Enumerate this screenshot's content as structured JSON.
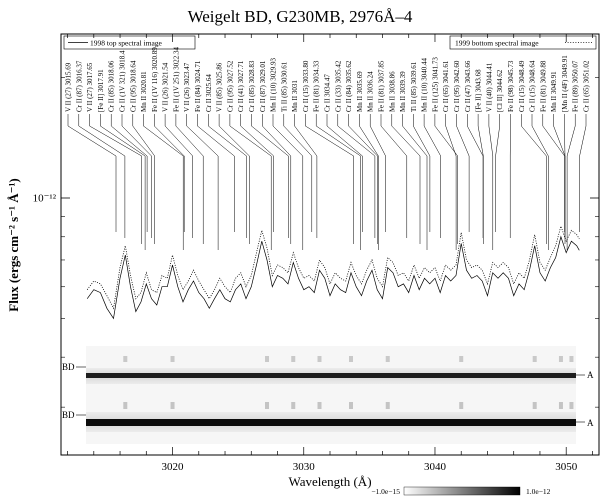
{
  "chart_data": {
    "type": "line",
    "title": "Weigelt BD, G230MB, 2976Å–4",
    "xlabel": "Wavelength (Å)",
    "ylabel": "Flux (ergs cm⁻² s⁻¹ Å⁻¹)",
    "xlim": [
      3011.5,
      3052.5
    ],
    "y_scale": "log",
    "x_ticks": [
      3020,
      3030,
      3040,
      3050
    ],
    "x_tick_labels": [
      "3020",
      "3030",
      "3040",
      "3050"
    ],
    "y_tick_label": "10⁻¹²",
    "legend": {
      "left": {
        "label": "1998 top spectral image",
        "style": "solid"
      },
      "right": {
        "label": "1999 bottom spectral image",
        "style": "dotted"
      }
    },
    "series": [
      {
        "name": "1998 top spectral image",
        "style": "solid",
        "x": [
          3013.5,
          3014.0,
          3014.5,
          3015.0,
          3015.5,
          3016.0,
          3016.4,
          3016.8,
          3017.2,
          3017.6,
          3018.0,
          3018.4,
          3018.8,
          3019.2,
          3019.6,
          3020.0,
          3020.4,
          3020.8,
          3021.2,
          3021.6,
          3022.0,
          3022.4,
          3022.8,
          3023.2,
          3023.6,
          3024.0,
          3024.4,
          3024.8,
          3025.2,
          3025.6,
          3026.0,
          3026.4,
          3026.8,
          3027.2,
          3027.6,
          3028.0,
          3028.4,
          3028.8,
          3029.2,
          3029.6,
          3030.0,
          3030.4,
          3030.8,
          3031.2,
          3031.6,
          3032.0,
          3032.4,
          3032.8,
          3033.2,
          3033.6,
          3034.0,
          3034.4,
          3034.8,
          3035.2,
          3035.6,
          3036.0,
          3036.4,
          3036.8,
          3037.2,
          3037.6,
          3038.0,
          3038.4,
          3038.8,
          3039.2,
          3039.6,
          3040.0,
          3040.4,
          3040.8,
          3041.2,
          3041.6,
          3042.0,
          3042.4,
          3042.8,
          3043.2,
          3043.6,
          3044.0,
          3044.4,
          3044.8,
          3045.2,
          3045.6,
          3046.0,
          3046.4,
          3046.8,
          3047.2,
          3047.6,
          3048.0,
          3048.4,
          3048.8,
          3049.2,
          3049.6,
          3050.0,
          3050.4,
          3050.8,
          3051.0
        ],
        "y": [
          5.6e-13,
          5.9e-13,
          5.8e-13,
          5.3e-13,
          5e-13,
          6.3e-13,
          7.2e-13,
          6e-13,
          5.2e-13,
          5.5e-13,
          6.1e-13,
          5.6e-13,
          5.4e-13,
          6e-13,
          6e-13,
          6.8e-13,
          6e-13,
          5.5e-13,
          5.9e-13,
          6.2e-13,
          5.8e-13,
          5.6e-13,
          5.3e-13,
          5.6e-13,
          5.9e-13,
          5.6e-13,
          5.5e-13,
          5.9e-13,
          6.1e-13,
          5.6e-13,
          6e-13,
          6.8e-13,
          7.8e-13,
          7e-13,
          6e-13,
          6.4e-13,
          6.3e-13,
          6.1e-13,
          6.9e-13,
          6.3e-13,
          5.9e-13,
          6e-13,
          5.8e-13,
          6.6e-13,
          6.3e-13,
          5.7e-13,
          6.1e-13,
          5.9e-13,
          5.8e-13,
          6.5e-13,
          6e-13,
          5.7e-13,
          6.2e-13,
          6.6e-13,
          5.9e-13,
          5.6e-13,
          6.7e-13,
          6.5e-13,
          6e-13,
          6.1e-13,
          5.8e-13,
          6.4e-13,
          5.9e-13,
          6.3e-13,
          6.1e-13,
          6.3e-13,
          5.8e-13,
          6.4e-13,
          6.2e-13,
          6.4e-13,
          7.7e-13,
          6.6e-13,
          6.3e-13,
          6.4e-13,
          6.2e-13,
          5.7e-13,
          6.5e-13,
          6.3e-13,
          6.5e-13,
          6.3e-13,
          5.7e-13,
          6.1e-13,
          5.9e-13,
          6.6e-13,
          7.6e-13,
          6.5e-13,
          6.2e-13,
          6.7e-13,
          7.1e-13,
          8e-13,
          7.3e-13,
          7.8e-13,
          7.6e-13,
          7.4e-13
        ]
      },
      {
        "name": "1999 bottom spectral image",
        "style": "dotted",
        "x": [
          3013.5,
          3014.0,
          3014.5,
          3015.0,
          3015.5,
          3016.0,
          3016.4,
          3016.8,
          3017.2,
          3017.6,
          3018.0,
          3018.4,
          3018.8,
          3019.2,
          3019.6,
          3020.0,
          3020.4,
          3020.8,
          3021.2,
          3021.6,
          3022.0,
          3022.4,
          3022.8,
          3023.2,
          3023.6,
          3024.0,
          3024.4,
          3024.8,
          3025.2,
          3025.6,
          3026.0,
          3026.4,
          3026.8,
          3027.2,
          3027.6,
          3028.0,
          3028.4,
          3028.8,
          3029.2,
          3029.6,
          3030.0,
          3030.4,
          3030.8,
          3031.2,
          3031.6,
          3032.0,
          3032.4,
          3032.8,
          3033.2,
          3033.6,
          3034.0,
          3034.4,
          3034.8,
          3035.2,
          3035.6,
          3036.0,
          3036.4,
          3036.8,
          3037.2,
          3037.6,
          3038.0,
          3038.4,
          3038.8,
          3039.2,
          3039.6,
          3040.0,
          3040.4,
          3040.8,
          3041.2,
          3041.6,
          3042.0,
          3042.4,
          3042.8,
          3043.2,
          3043.6,
          3044.0,
          3044.4,
          3044.8,
          3045.2,
          3045.6,
          3046.0,
          3046.4,
          3046.8,
          3047.2,
          3047.6,
          3048.0,
          3048.4,
          3048.8,
          3049.2,
          3049.6,
          3050.0,
          3050.4,
          3050.8,
          3051.0
        ],
        "y": [
          5.9e-13,
          6.2e-13,
          6.1e-13,
          5.7e-13,
          5.3e-13,
          6.7e-13,
          7.6e-13,
          6.4e-13,
          5.6e-13,
          5.8e-13,
          6.5e-13,
          5.9e-13,
          5.8e-13,
          6.4e-13,
          6.3e-13,
          7.2e-13,
          6.4e-13,
          5.9e-13,
          6.2e-13,
          6.6e-13,
          6.2e-13,
          5.9e-13,
          5.6e-13,
          5.9e-13,
          6.3e-13,
          6e-13,
          5.8e-13,
          6.3e-13,
          6.5e-13,
          6e-13,
          6.4e-13,
          7.3e-13,
          8.3e-13,
          7.5e-13,
          6.4e-13,
          6.8e-13,
          6.7e-13,
          6.5e-13,
          7.3e-13,
          6.7e-13,
          6.3e-13,
          6.4e-13,
          6.2e-13,
          7e-13,
          6.7e-13,
          6.1e-13,
          6.5e-13,
          6.3e-13,
          6.2e-13,
          6.9e-13,
          6.4e-13,
          6.1e-13,
          6.6e-13,
          7e-13,
          6.3e-13,
          6e-13,
          7.1e-13,
          6.9e-13,
          6.4e-13,
          6.5e-13,
          6.2e-13,
          6.8e-13,
          6.3e-13,
          6.7e-13,
          6.5e-13,
          6.7e-13,
          6.2e-13,
          6.8e-13,
          6.6e-13,
          6.8e-13,
          8.2e-13,
          7e-13,
          6.7e-13,
          6.8e-13,
          6.6e-13,
          6.1e-13,
          6.9e-13,
          6.7e-13,
          6.9e-13,
          6.7e-13,
          6.1e-13,
          6.5e-13,
          6.3e-13,
          7e-13,
          8.1e-13,
          6.9e-13,
          6.6e-13,
          7.1e-13,
          7.6e-13,
          8.5e-13,
          7.8e-13,
          8.3e-13,
          8.1e-13,
          7.9e-13
        ]
      }
    ],
    "line_identifications": [
      {
        "label": "V II (27) 3015.69",
        "x": 3015.69
      },
      {
        "label": "Cr II (87) 3016.37",
        "x": 3016.37
      },
      {
        "label": "V II (27) 3017.65",
        "x": 3017.65
      },
      {
        "label": "[Fe II] 3017.91",
        "x": 3017.91
      },
      {
        "label": "Cr II (85) 3018.06",
        "x": 3018.06
      },
      {
        "label": "Cr II (1V 321) 3018.4",
        "x": 3018.4
      },
      {
        "label": "Cr II (95) 3018.64",
        "x": 3018.64
      },
      {
        "label": "Mn II 3020.81",
        "x": 3020.81
      },
      {
        "label": "Fe II (1V 116) 3020.89",
        "x": 3020.89
      },
      {
        "label": "V II (26) 3021.54",
        "x": 3021.54
      },
      {
        "label": "Fe II (1V 251) 3022.34",
        "x": 3022.34
      },
      {
        "label": "V II (26) 3023.47",
        "x": 3023.47
      },
      {
        "label": "Fe II (84) 3024.71",
        "x": 3024.71
      },
      {
        "label": "Cr II 3025.64",
        "x": 3025.64
      },
      {
        "label": "V II (85) 3025.86",
        "x": 3025.86
      },
      {
        "label": "Cr II (95) 3027.52",
        "x": 3027.52
      },
      {
        "label": "Cr II (41) 3027.71",
        "x": 3027.71
      },
      {
        "label": "Cr II (85) 3028.83",
        "x": 3028.83
      },
      {
        "label": "Cr II (87) 3029.01",
        "x": 3029.01
      },
      {
        "label": "Mn II (10) 3029.93",
        "x": 3029.93
      },
      {
        "label": "Ti II (85) 3030.61",
        "x": 3030.61
      },
      {
        "label": "Mn II 3031",
        "x": 3031.0
      },
      {
        "label": "Cr II (15) 3033.80",
        "x": 3033.8
      },
      {
        "label": "Fe II (81) 3034.33",
        "x": 3034.33
      },
      {
        "label": "Cr II 3034.47",
        "x": 3034.47
      },
      {
        "label": "Cr II (33) 3035.42",
        "x": 3035.42
      },
      {
        "label": "Cr II (84) 3035.62",
        "x": 3035.62
      },
      {
        "label": "Mn II 3035.69",
        "x": 3035.69
      },
      {
        "label": "Mn II 3036.24",
        "x": 3036.24
      },
      {
        "label": "Fe II (81) 3037.85",
        "x": 3037.85
      },
      {
        "label": "Mn II 3038.86",
        "x": 3038.86
      },
      {
        "label": "Mn II 3039.39",
        "x": 3039.39
      },
      {
        "label": "Ti II (85) 3039.61",
        "x": 3039.61
      },
      {
        "label": "Mn II (10) 3040.44",
        "x": 3040.44
      },
      {
        "label": "Fe II (125) 3041.73",
        "x": 3041.73
      },
      {
        "label": "Cr II (65) 3041.61",
        "x": 3041.61
      },
      {
        "label": "Cr II (95) 3042.60",
        "x": 3042.6
      },
      {
        "label": "Cr II (47) 3043.66",
        "x": 3043.66
      },
      {
        "label": "[Fe II] 3043.68",
        "x": 3043.68
      },
      {
        "label": "V II (40) 3044.41",
        "x": 3044.41
      },
      {
        "label": "[Cl II] 3044.62",
        "x": 3044.62
      },
      {
        "label": "Fe II (98) 3045.73",
        "x": 3045.73
      },
      {
        "label": "Cr II (15) 3048.49",
        "x": 3048.49
      },
      {
        "label": "Cr II (15) 3048.64",
        "x": 3048.64
      },
      {
        "label": "Fe II (81) 3049.88",
        "x": 3049.88
      },
      {
        "label": "Mn II 3049.91",
        "x": 3049.91
      },
      {
        "label": "[Mn II (4F) 3049.91",
        "x": 3049.91
      },
      {
        "label": "Fe II (89) 3050.07",
        "x": 3050.07
      },
      {
        "label": "Cr II (65) 3051.02",
        "x": 3051.02
      }
    ],
    "spectral_images": {
      "label_left": "BD",
      "label_right": "A",
      "colorbar": {
        "min_label": "−1.0e−15",
        "max_label": "1.0e−12"
      }
    }
  }
}
